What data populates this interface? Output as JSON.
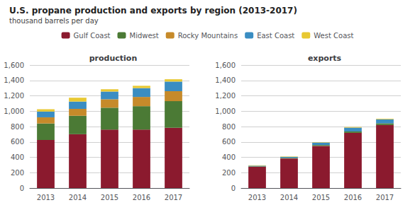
{
  "title": "U.S. propane production and exports by region (2013-2017)",
  "subtitle": "thousand barrels per day",
  "chart_data": [
    {
      "type": "bar",
      "title": "production",
      "stacked": true,
      "grid": true,
      "legend": "top",
      "categories": [
        "2013",
        "2014",
        "2015",
        "2016",
        "2017"
      ],
      "series": [
        {
          "name": "Gulf Coast",
          "color": "#8B1A2E",
          "values": [
            625,
            700,
            760,
            760,
            785
          ]
        },
        {
          "name": "Midwest",
          "color": "#4B7A35",
          "values": [
            215,
            240,
            285,
            305,
            345
          ]
        },
        {
          "name": "Rocky Mountains",
          "color": "#C68A2A",
          "values": [
            80,
            90,
            110,
            120,
            130
          ]
        },
        {
          "name": "East Coast",
          "color": "#3A8DC2",
          "values": [
            75,
            95,
            100,
            115,
            125
          ]
        },
        {
          "name": "West Coast",
          "color": "#E8C832",
          "values": [
            30,
            50,
            30,
            30,
            30
          ]
        }
      ],
      "ylim": [
        0,
        1600
      ],
      "yticks": [
        0,
        200,
        400,
        600,
        800,
        {
          "value": 1000,
          "label": "1,000"
        },
        {
          "value": 1200,
          "label": "1,200"
        },
        {
          "value": 1400,
          "label": "1,400"
        },
        {
          "value": 1600,
          "label": "1,600"
        }
      ]
    },
    {
      "type": "bar",
      "title": "exports",
      "stacked": true,
      "grid": true,
      "legend": "top",
      "categories": [
        "2013",
        "2014",
        "2015",
        "2016",
        "2017"
      ],
      "series": [
        {
          "name": "Gulf Coast",
          "color": "#8B1A2E",
          "values": [
            278,
            385,
            548,
            718,
            820
          ]
        },
        {
          "name": "Midwest",
          "color": "#4B7A35",
          "values": [
            5,
            8,
            12,
            18,
            22
          ]
        },
        {
          "name": "Rocky Mountains",
          "color": "#C68A2A",
          "values": [
            0,
            0,
            0,
            0,
            0
          ]
        },
        {
          "name": "East Coast",
          "color": "#3A8DC2",
          "values": [
            8,
            12,
            32,
            50,
            52
          ]
        },
        {
          "name": "West Coast",
          "color": "#E8C832",
          "values": [
            5,
            5,
            5,
            8,
            8
          ]
        }
      ],
      "ylim": [
        0,
        1600
      ],
      "yticks": [
        0,
        200,
        400,
        600,
        800,
        {
          "value": 1000,
          "label": "1,000"
        },
        {
          "value": 1200,
          "label": "1,200"
        },
        {
          "value": 1400,
          "label": "1,400"
        },
        {
          "value": 1600,
          "label": "1,600"
        }
      ]
    }
  ]
}
